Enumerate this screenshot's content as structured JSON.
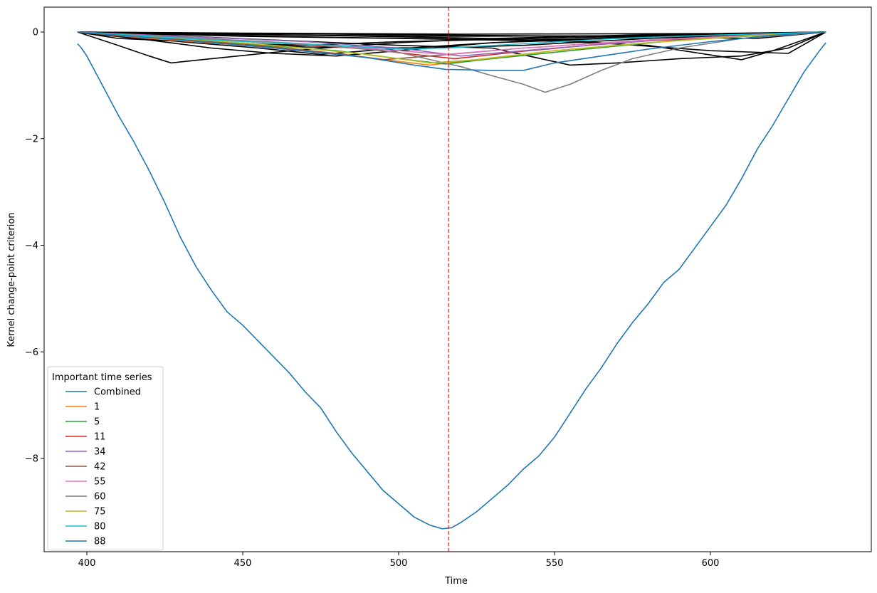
{
  "chart_data": {
    "type": "line",
    "title": "",
    "xlabel": "Time",
    "ylabel": "Kernel change-point criterion",
    "xlim": [
      386,
      1224
    ],
    "ylim": [
      -9.8,
      0.45
    ],
    "xticks": [
      400,
      450,
      500,
      550,
      600
    ],
    "yticks": [
      0,
      -2,
      -4,
      -6,
      -8
    ],
    "ytick_labels": [
      "0",
      "−2",
      "−4",
      "−6",
      "−8"
    ],
    "grid": false,
    "legend": {
      "title": "Important time series",
      "placement": "bottom-left"
    },
    "vline": {
      "x": 516,
      "color": "#e31a1c",
      "style": "dashed"
    },
    "series": [
      {
        "name": "Combined",
        "color": "#1f77b4",
        "points": [
          [
            397,
            -0.22
          ],
          [
            398,
            -0.28
          ],
          [
            400,
            -0.45
          ],
          [
            405,
            -1.0
          ],
          [
            410,
            -1.55
          ],
          [
            415,
            -2.05
          ],
          [
            420,
            -2.6
          ],
          [
            425,
            -3.2
          ],
          [
            430,
            -3.85
          ],
          [
            435,
            -4.4
          ],
          [
            440,
            -4.85
          ],
          [
            445,
            -5.25
          ],
          [
            450,
            -5.5
          ],
          [
            455,
            -5.8
          ],
          [
            460,
            -6.1
          ],
          [
            465,
            -6.4
          ],
          [
            470,
            -6.75
          ],
          [
            475,
            -7.05
          ],
          [
            480,
            -7.5
          ],
          [
            485,
            -7.9
          ],
          [
            490,
            -8.25
          ],
          [
            495,
            -8.6
          ],
          [
            500,
            -8.85
          ],
          [
            505,
            -9.1
          ],
          [
            510,
            -9.25
          ],
          [
            514,
            -9.32
          ],
          [
            517,
            -9.3
          ],
          [
            520,
            -9.2
          ],
          [
            525,
            -9.0
          ],
          [
            530,
            -8.75
          ],
          [
            535,
            -8.5
          ],
          [
            540,
            -8.2
          ],
          [
            545,
            -7.95
          ],
          [
            550,
            -7.6
          ],
          [
            555,
            -7.15
          ],
          [
            560,
            -6.7
          ],
          [
            565,
            -6.3
          ],
          [
            570,
            -5.85
          ],
          [
            575,
            -5.45
          ],
          [
            580,
            -5.1
          ],
          [
            585,
            -4.7
          ],
          [
            590,
            -4.45
          ],
          [
            595,
            -4.05
          ],
          [
            600,
            -3.65
          ],
          [
            605,
            -3.25
          ],
          [
            610,
            -2.75
          ],
          [
            615,
            -2.2
          ],
          [
            620,
            -1.75
          ],
          [
            625,
            -1.25
          ],
          [
            630,
            -0.75
          ],
          [
            635,
            -0.35
          ],
          [
            637,
            -0.2
          ]
        ]
      },
      {
        "name": "1",
        "color": "#ff7f0e",
        "points": [
          [
            397,
            0
          ],
          [
            420,
            -0.12
          ],
          [
            450,
            -0.25
          ],
          [
            480,
            -0.4
          ],
          [
            500,
            -0.55
          ],
          [
            510,
            -0.62
          ],
          [
            520,
            -0.55
          ],
          [
            550,
            -0.35
          ],
          [
            580,
            -0.2
          ],
          [
            610,
            -0.08
          ],
          [
            637,
            0
          ]
        ]
      },
      {
        "name": "5",
        "color": "#2ca02c",
        "points": [
          [
            397,
            0
          ],
          [
            420,
            -0.1
          ],
          [
            450,
            -0.22
          ],
          [
            480,
            -0.35
          ],
          [
            500,
            -0.5
          ],
          [
            515,
            -0.6
          ],
          [
            530,
            -0.5
          ],
          [
            560,
            -0.32
          ],
          [
            590,
            -0.15
          ],
          [
            637,
            0
          ]
        ]
      },
      {
        "name": "11",
        "color": "#d62728",
        "points": [
          [
            397,
            0
          ],
          [
            430,
            -0.1
          ],
          [
            460,
            -0.2
          ],
          [
            490,
            -0.32
          ],
          [
            505,
            -0.42
          ],
          [
            518,
            -0.5
          ],
          [
            540,
            -0.36
          ],
          [
            570,
            -0.2
          ],
          [
            600,
            -0.1
          ],
          [
            637,
            0
          ]
        ]
      },
      {
        "name": "34",
        "color": "#9467bd",
        "points": [
          [
            397,
            0
          ],
          [
            430,
            -0.08
          ],
          [
            470,
            -0.18
          ],
          [
            500,
            -0.3
          ],
          [
            520,
            -0.45
          ],
          [
            550,
            -0.3
          ],
          [
            590,
            -0.12
          ],
          [
            637,
            0
          ]
        ]
      },
      {
        "name": "42",
        "color": "#8c564b",
        "points": [
          [
            397,
            0
          ],
          [
            430,
            -0.14
          ],
          [
            460,
            -0.28
          ],
          [
            480,
            -0.4
          ],
          [
            495,
            -0.52
          ],
          [
            510,
            -0.45
          ],
          [
            540,
            -0.3
          ],
          [
            580,
            -0.15
          ],
          [
            637,
            0
          ]
        ]
      },
      {
        "name": "55",
        "color": "#e377c2",
        "points": [
          [
            397,
            0
          ],
          [
            430,
            -0.1
          ],
          [
            470,
            -0.22
          ],
          [
            500,
            -0.35
          ],
          [
            515,
            -0.42
          ],
          [
            540,
            -0.3
          ],
          [
            580,
            -0.15
          ],
          [
            637,
            0
          ]
        ]
      },
      {
        "name": "60",
        "color": "#7f7f7f",
        "points": [
          [
            397,
            0
          ],
          [
            430,
            -0.1
          ],
          [
            470,
            -0.22
          ],
          [
            500,
            -0.38
          ],
          [
            520,
            -0.65
          ],
          [
            530,
            -0.82
          ],
          [
            540,
            -0.98
          ],
          [
            547,
            -1.13
          ],
          [
            555,
            -0.98
          ],
          [
            565,
            -0.72
          ],
          [
            575,
            -0.5
          ],
          [
            590,
            -0.3
          ],
          [
            610,
            -0.12
          ],
          [
            637,
            0
          ]
        ]
      },
      {
        "name": "75",
        "color": "#bcbd22",
        "points": [
          [
            397,
            0
          ],
          [
            430,
            -0.12
          ],
          [
            460,
            -0.25
          ],
          [
            490,
            -0.42
          ],
          [
            510,
            -0.58
          ],
          [
            525,
            -0.52
          ],
          [
            550,
            -0.35
          ],
          [
            580,
            -0.2
          ],
          [
            610,
            -0.08
          ],
          [
            637,
            0
          ]
        ]
      },
      {
        "name": "80",
        "color": "#17becf",
        "points": [
          [
            397,
            0
          ],
          [
            420,
            -0.08
          ],
          [
            450,
            -0.18
          ],
          [
            480,
            -0.25
          ],
          [
            500,
            -0.32
          ],
          [
            515,
            -0.3
          ],
          [
            540,
            -0.22
          ],
          [
            570,
            -0.12
          ],
          [
            600,
            -0.06
          ],
          [
            637,
            0
          ]
        ]
      },
      {
        "name": "88",
        "color": "#1f77b4",
        "points": [
          [
            397,
            0
          ],
          [
            430,
            -0.15
          ],
          [
            460,
            -0.3
          ],
          [
            490,
            -0.48
          ],
          [
            505,
            -0.62
          ],
          [
            515,
            -0.7
          ],
          [
            530,
            -0.72
          ],
          [
            540,
            -0.72
          ],
          [
            550,
            -0.58
          ],
          [
            565,
            -0.45
          ],
          [
            580,
            -0.32
          ],
          [
            600,
            -0.18
          ],
          [
            620,
            -0.06
          ],
          [
            637,
            0
          ]
        ]
      }
    ],
    "background_series": [
      {
        "color": "#000000",
        "points": [
          [
            397,
            0
          ],
          [
            410,
            -0.25
          ],
          [
            420,
            -0.45
          ],
          [
            427,
            -0.58
          ],
          [
            440,
            -0.5
          ],
          [
            460,
            -0.38
          ],
          [
            480,
            -0.28
          ],
          [
            500,
            -0.2
          ],
          [
            530,
            -0.12
          ],
          [
            580,
            -0.05
          ],
          [
            637,
            0
          ]
        ]
      },
      {
        "color": "#000000",
        "points": [
          [
            397,
            0
          ],
          [
            420,
            -0.15
          ],
          [
            440,
            -0.3
          ],
          [
            460,
            -0.4
          ],
          [
            480,
            -0.45
          ],
          [
            500,
            -0.35
          ],
          [
            530,
            -0.2
          ],
          [
            580,
            -0.08
          ],
          [
            637,
            0
          ]
        ]
      },
      {
        "color": "#000000",
        "points": [
          [
            397,
            0
          ],
          [
            420,
            -0.1
          ],
          [
            470,
            -0.28
          ],
          [
            510,
            -0.3
          ],
          [
            540,
            -0.25
          ],
          [
            580,
            -0.12
          ],
          [
            637,
            0
          ]
        ]
      },
      {
        "color": "#000000",
        "points": [
          [
            397,
            0
          ],
          [
            440,
            -0.1
          ],
          [
            500,
            -0.25
          ],
          [
            530,
            -0.3
          ],
          [
            555,
            -0.62
          ],
          [
            570,
            -0.58
          ],
          [
            590,
            -0.5
          ],
          [
            610,
            -0.45
          ],
          [
            625,
            -0.3
          ],
          [
            637,
            0
          ]
        ]
      },
      {
        "color": "#000000",
        "points": [
          [
            397,
            0
          ],
          [
            460,
            -0.05
          ],
          [
            530,
            -0.12
          ],
          [
            580,
            -0.25
          ],
          [
            610,
            -0.52
          ],
          [
            620,
            -0.35
          ],
          [
            637,
            0
          ]
        ]
      },
      {
        "color": "#000000",
        "points": [
          [
            397,
            0
          ],
          [
            450,
            -0.08
          ],
          [
            500,
            -0.12
          ],
          [
            560,
            -0.18
          ],
          [
            600,
            -0.35
          ],
          [
            625,
            -0.4
          ],
          [
            637,
            0
          ]
        ]
      },
      {
        "color": "#000000",
        "points": [
          [
            397,
            0
          ],
          [
            430,
            -0.05
          ],
          [
            480,
            -0.1
          ],
          [
            540,
            -0.15
          ],
          [
            590,
            -0.1
          ],
          [
            637,
            0
          ]
        ]
      },
      {
        "color": "#000000",
        "points": [
          [
            397,
            0
          ],
          [
            420,
            -0.03
          ],
          [
            470,
            -0.06
          ],
          [
            520,
            -0.08
          ],
          [
            570,
            -0.07
          ],
          [
            637,
            0
          ]
        ]
      },
      {
        "color": "#000000",
        "points": [
          [
            397,
            0
          ],
          [
            410,
            -0.12
          ],
          [
            440,
            -0.2
          ],
          [
            470,
            -0.25
          ],
          [
            500,
            -0.18
          ],
          [
            560,
            -0.1
          ],
          [
            637,
            0
          ]
        ]
      },
      {
        "color": "#000000",
        "points": [
          [
            397,
            0
          ],
          [
            450,
            -0.02
          ],
          [
            520,
            -0.04
          ],
          [
            600,
            -0.03
          ],
          [
            637,
            0
          ]
        ]
      },
      {
        "color": "#000000",
        "points": [
          [
            397,
            0
          ],
          [
            500,
            -0.05
          ],
          [
            560,
            -0.08
          ],
          [
            615,
            -0.12
          ],
          [
            637,
            0
          ]
        ]
      },
      {
        "color": "#000000",
        "points": [
          [
            397,
            0
          ],
          [
            430,
            -0.18
          ],
          [
            455,
            -0.3
          ],
          [
            475,
            -0.42
          ],
          [
            490,
            -0.35
          ],
          [
            530,
            -0.2
          ],
          [
            590,
            -0.08
          ],
          [
            637,
            0
          ]
        ]
      }
    ]
  }
}
